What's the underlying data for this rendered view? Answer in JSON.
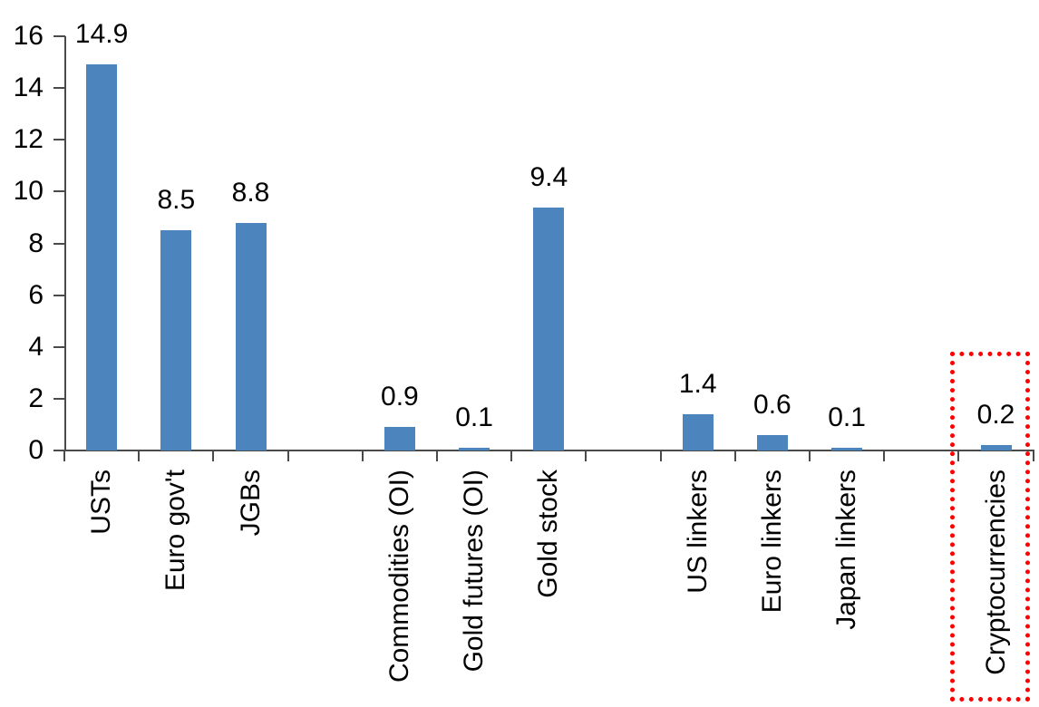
{
  "chart_data": {
    "type": "bar",
    "title": "",
    "xlabel": "",
    "ylabel": "",
    "categories": [
      "USTs",
      "Euro gov't",
      "JGBs",
      "",
      "Commodities (OI)",
      "Gold futures (OI)",
      "Gold stock",
      "",
      "US linkers",
      "Euro linkers",
      "Japan linkers",
      "",
      "Cryptocurrencies"
    ],
    "values": [
      14.9,
      8.5,
      8.8,
      null,
      0.9,
      0.1,
      9.4,
      null,
      1.4,
      0.6,
      0.1,
      null,
      0.2
    ],
    "data_labels": [
      "14.9",
      "8.5",
      "8.8",
      "",
      "0.9",
      "0.1",
      "9.4",
      "",
      "1.4",
      "0.6",
      "0.1",
      "",
      "0.2"
    ],
    "ylim": [
      0,
      16
    ],
    "yticks": [
      0,
      2,
      4,
      6,
      8,
      10,
      12,
      14,
      16
    ],
    "grid": false,
    "legend": false,
    "bar_color": "#4C85BE",
    "axis_color": "#4a4a4a",
    "label_color": "#000000",
    "highlight": {
      "category": "Cryptocurrencies",
      "index": 12,
      "box_color": "#FF0000",
      "box_style": "dotted"
    }
  }
}
